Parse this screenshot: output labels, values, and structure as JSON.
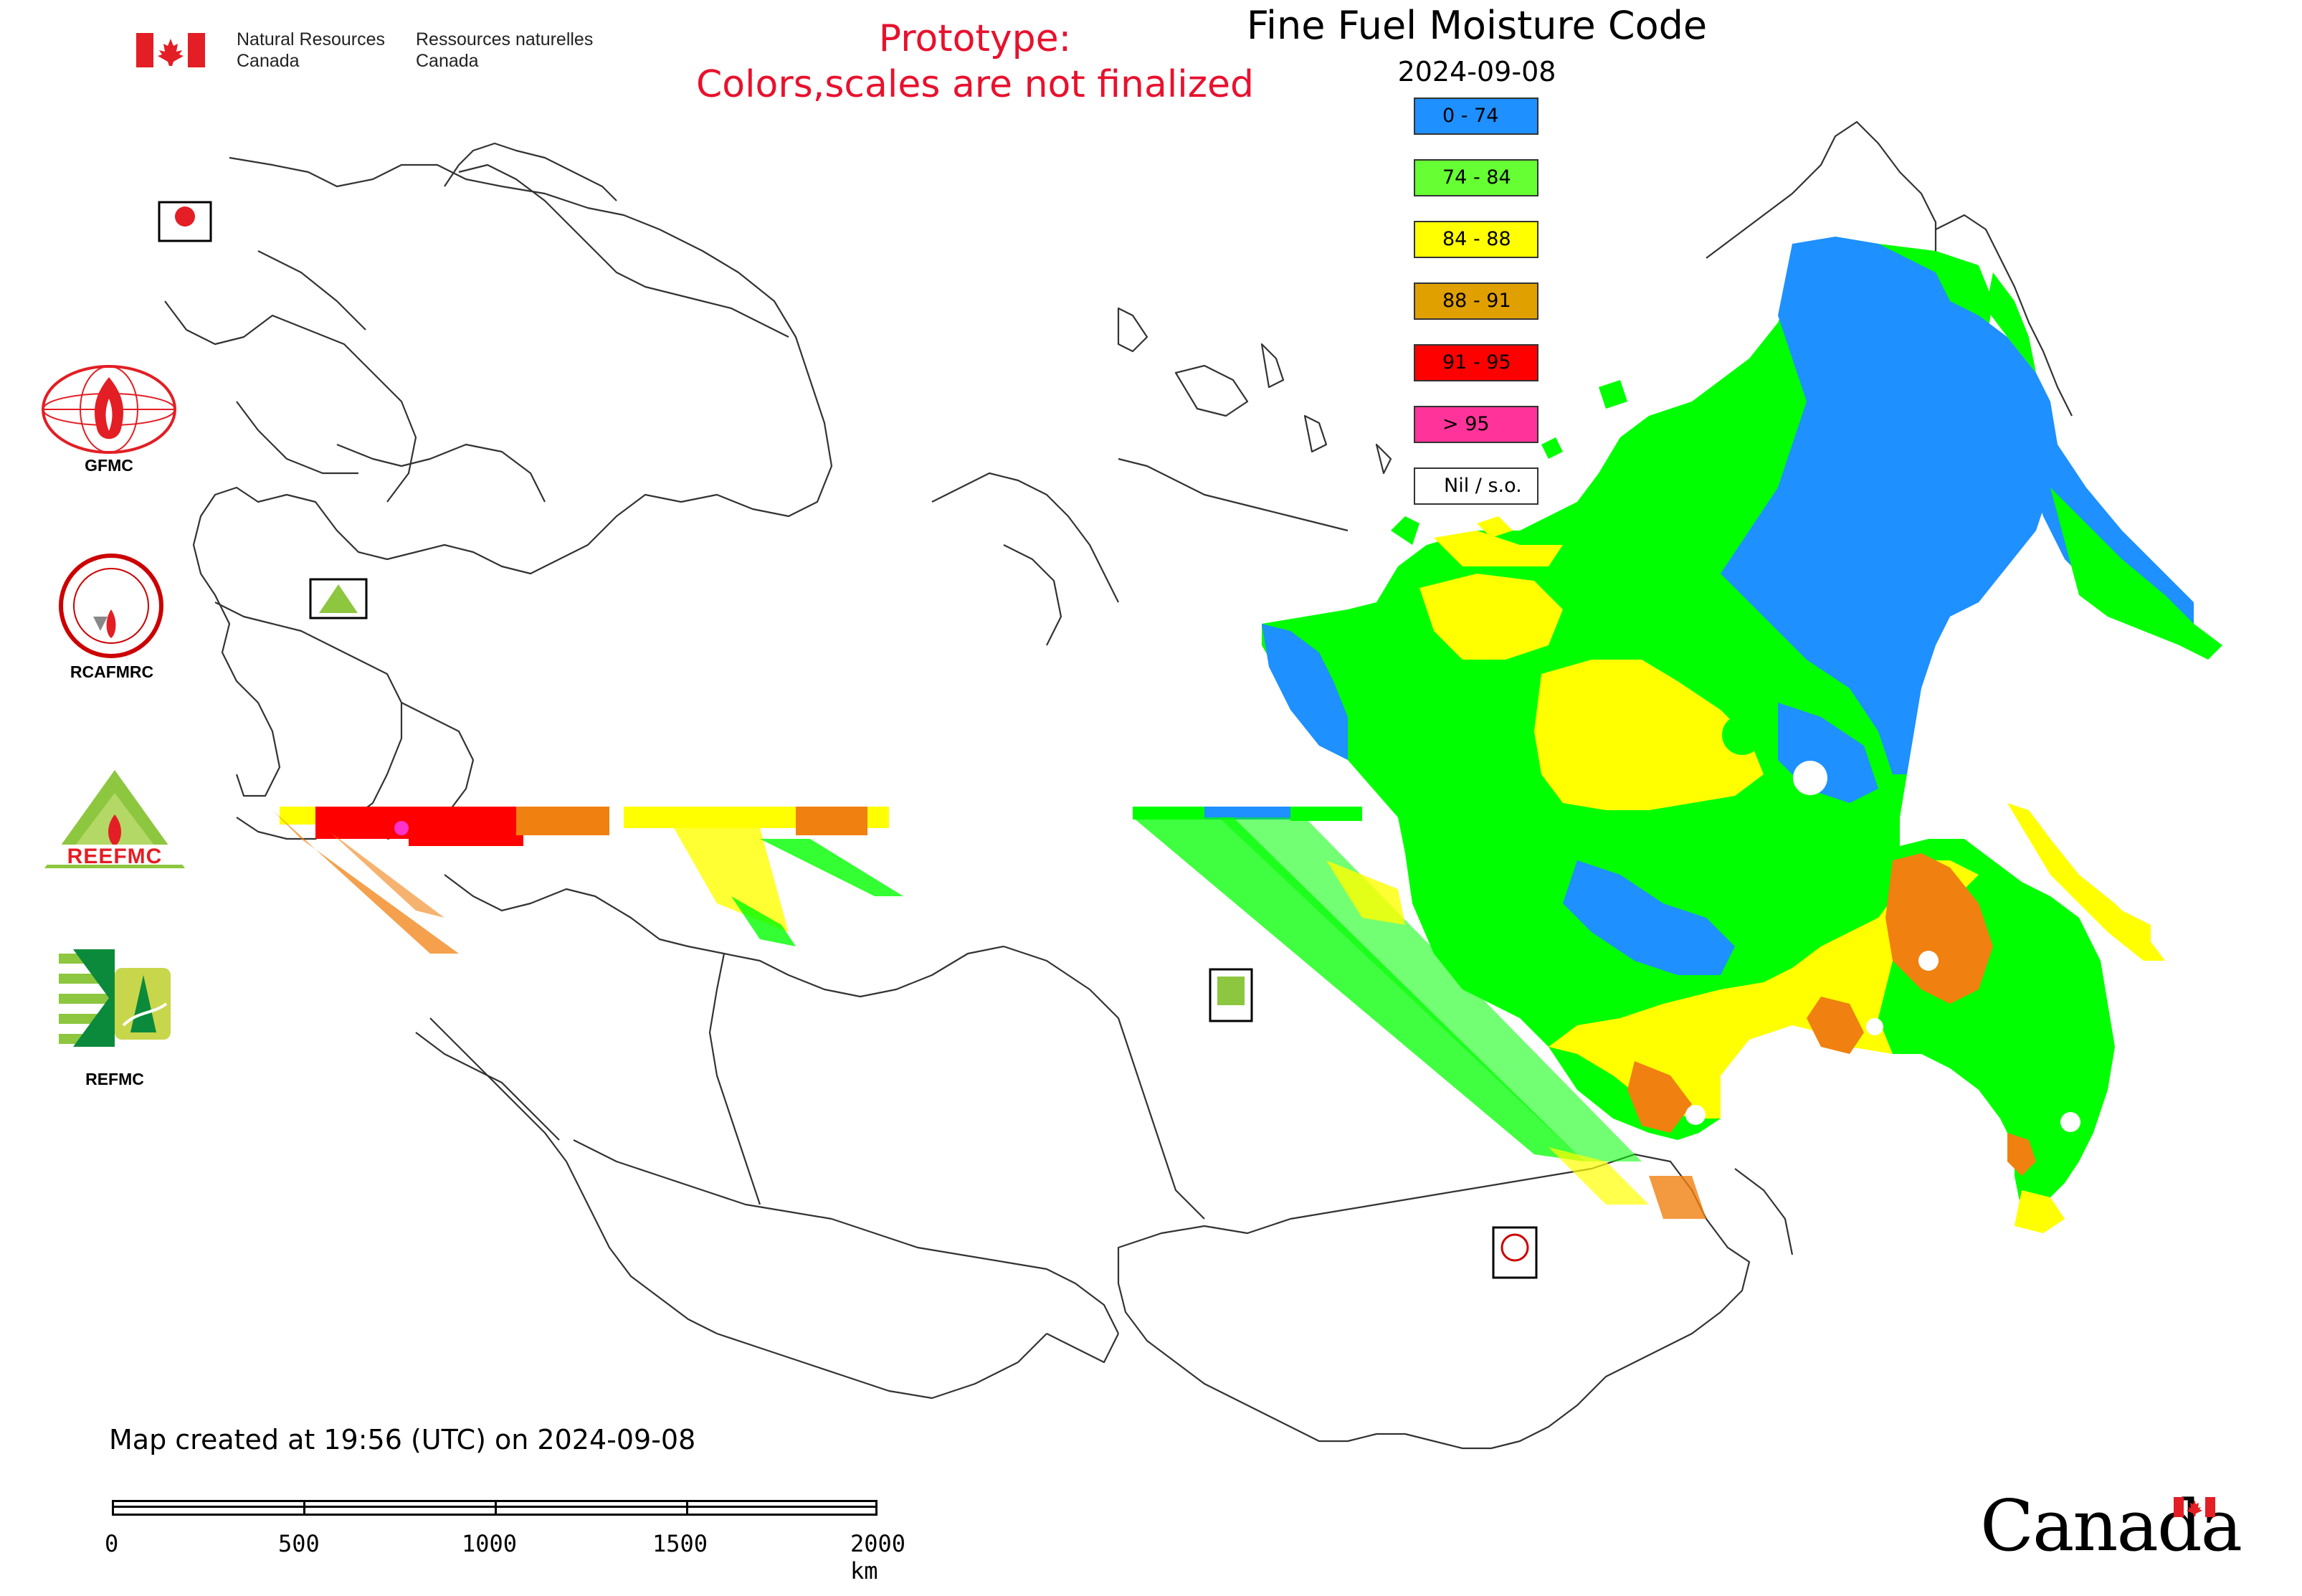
{
  "header": {
    "dept_en_line1": "Natural Resources",
    "dept_en_line2": "Canada",
    "dept_fr_line1": "Ressources naturelles",
    "dept_fr_line2": "Canada",
    "prototype_line1": "Prototype:",
    "prototype_line2": "Colors,scales are not finalized",
    "title": "Fine Fuel Moisture Code",
    "date": "2024-09-08"
  },
  "legend": {
    "items": [
      {
        "label": "0 - 74",
        "color": "#1e90ff"
      },
      {
        "label": "74 - 84",
        "color": "#66ff33"
      },
      {
        "label": "84 - 88",
        "color": "#ffff00"
      },
      {
        "label": "88 - 91",
        "color": "#e0a000"
      },
      {
        "label": "91 - 95",
        "color": "#ff0000"
      },
      {
        "label": "> 95",
        "color": "#ff3399"
      },
      {
        "label": "Nil / s.o.",
        "color": "#ffffff"
      }
    ]
  },
  "logos": {
    "gfmc": "GFMC",
    "rcafmrc": "RCAFMRC",
    "reefmc_label": "REFMC",
    "reefmc_mark": "REEFMC",
    "rcafmrc_mark": "RCAFMRC",
    "gfmc_small": "GFMC"
  },
  "footer": {
    "created": "Map created at 19:56 (UTC) on 2024-09-08",
    "scale_labels": [
      "0",
      "500",
      "1000",
      "1500",
      "2000 km"
    ],
    "wordmark": "Canada"
  },
  "map": {
    "colors": {
      "blue": "#1e90ff",
      "green": "#00ff00",
      "yellow": "#ffff00",
      "orange": "#f08010",
      "red": "#ff0000",
      "pink": "#ff33cc"
    }
  }
}
